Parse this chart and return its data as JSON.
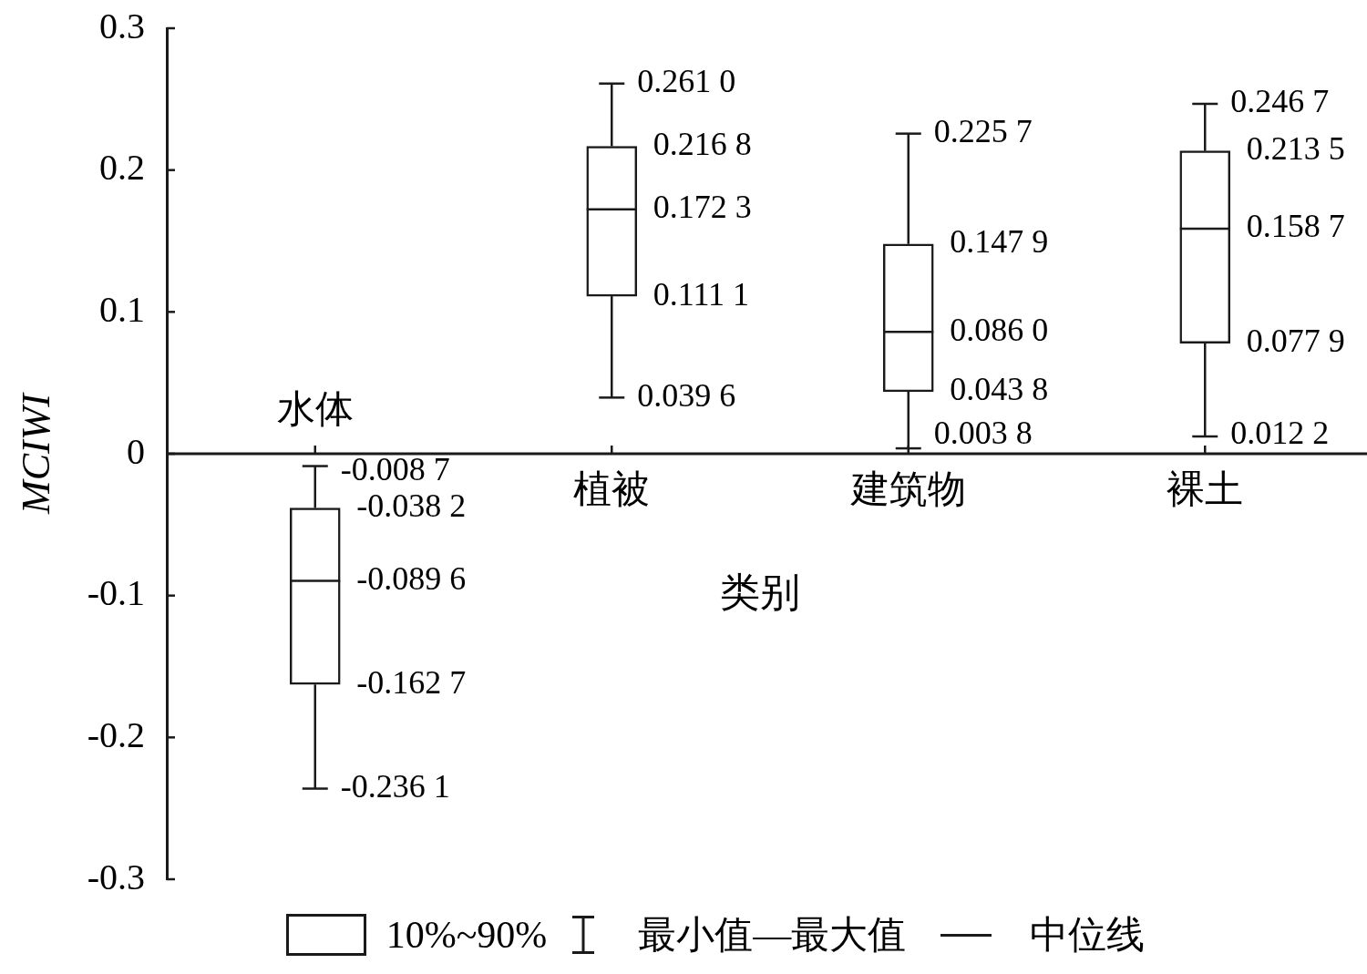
{
  "chart_data": {
    "type": "box",
    "xlabel": "类别",
    "ylabel": "MCIWI",
    "categories": [
      "水体",
      "植被",
      "建筑物",
      "裸土"
    ],
    "boxes": [
      {
        "low": -0.2361,
        "q1": -0.1627,
        "median": -0.0896,
        "q3": -0.0382,
        "high": -0.0087
      },
      {
        "low": 0.0396,
        "q1": 0.1111,
        "median": 0.1723,
        "q3": 0.2168,
        "high": 0.261
      },
      {
        "low": 0.0038,
        "q1": 0.0438,
        "median": 0.086,
        "q3": 0.1479,
        "high": 0.2257
      },
      {
        "low": 0.0122,
        "q1": 0.0779,
        "median": 0.1587,
        "q3": 0.2135,
        "high": 0.2467
      }
    ],
    "color": "#1a1a1a",
    "ylim": [
      -0.3,
      0.3
    ],
    "yticks": [
      -0.3,
      -0.2,
      -0.1,
      0,
      0.1,
      0.2,
      0.3
    ],
    "annotations": [
      "10%~90%",
      "最小值—最大值",
      "中位线",
      {
        "text": "-0.008 7",
        "x": "水体",
        "y": -0.0087
      },
      {
        "text": "-0.038 2",
        "x": "水体",
        "y": -0.0382
      },
      {
        "text": "-0.089 6",
        "x": "水体",
        "y": -0.0896
      },
      {
        "text": "-0.162 7",
        "x": "水体",
        "y": -0.1627
      },
      {
        "text": "-0.236 1",
        "x": "水体",
        "y": -0.2361
      },
      {
        "text": "0.261 0",
        "x": "植被",
        "y": 0.261
      },
      {
        "text": "0.216 8",
        "x": "植被",
        "y": 0.2168
      },
      {
        "text": "0.172 3",
        "x": "植被",
        "y": 0.1723
      },
      {
        "text": "0.111 1",
        "x": "植被",
        "y": 0.1111
      },
      {
        "text": "0.039 6",
        "x": "植被",
        "y": 0.0396
      },
      {
        "text": "0.225 7",
        "x": "建筑物",
        "y": 0.2257
      },
      {
        "text": "0.147 9",
        "x": "建筑物",
        "y": 0.1479
      },
      {
        "text": "0.086 0",
        "x": "建筑物",
        "y": 0.086
      },
      {
        "text": "0.043 8",
        "x": "建筑物",
        "y": 0.0438
      },
      {
        "text": "0.003 8",
        "x": "建筑物",
        "y": 0.0038
      },
      {
        "text": "0.246 7",
        "x": "裸土",
        "y": 0.2467
      },
      {
        "text": "0.213 5",
        "x": "裸土",
        "y": 0.2135
      },
      {
        "text": "0.158 7",
        "x": "裸土",
        "y": 0.1587
      },
      {
        "text": "0.077 9",
        "x": "裸土",
        "y": 0.0779
      },
      {
        "text": "0.012 2",
        "x": "裸土",
        "y": 0.0122
      }
    ]
  }
}
